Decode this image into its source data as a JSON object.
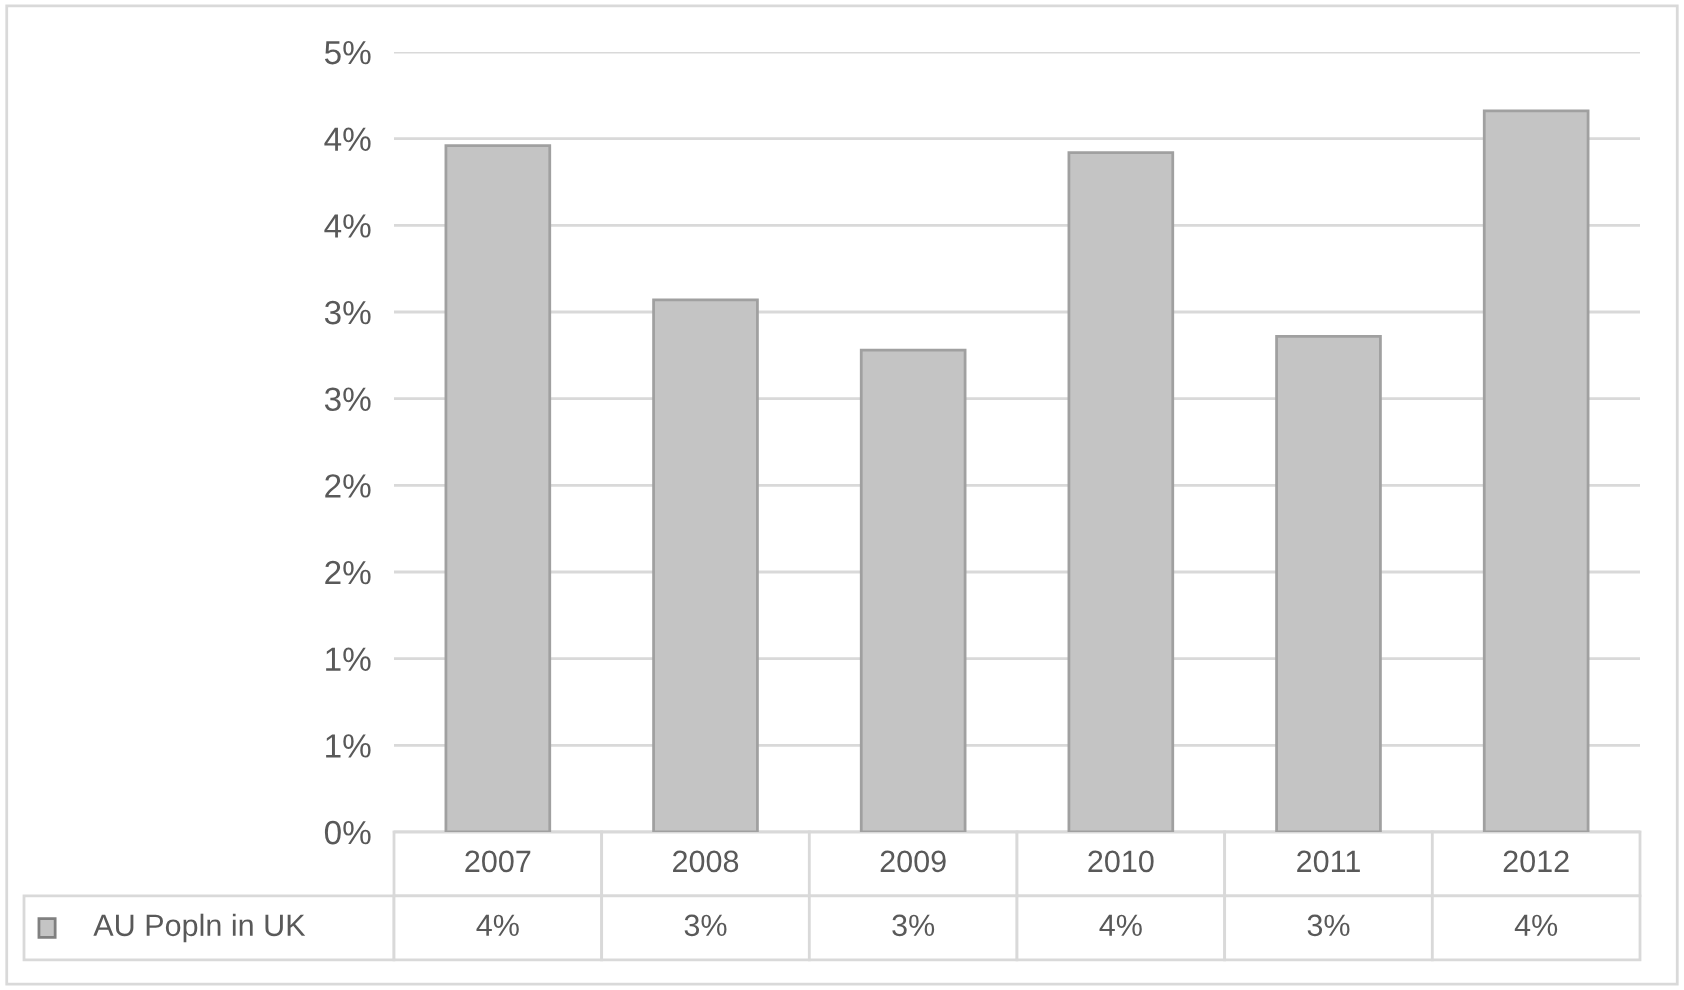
{
  "chart_data": {
    "type": "bar",
    "categories": [
      "2007",
      "2008",
      "2009",
      "2010",
      "2011",
      "2012"
    ],
    "series": [
      {
        "name": "AU Popln in UK",
        "color": "#c4c4c4",
        "values": [
          3.96,
          3.07,
          2.78,
          3.92,
          2.86,
          4.16
        ],
        "value_labels": [
          "4%",
          "3%",
          "3%",
          "4%",
          "3%",
          "4%"
        ]
      }
    ],
    "ylim": [
      0,
      4.5
    ],
    "yticks": [
      {
        "value": 0,
        "label": "0%"
      },
      {
        "value": 0.5,
        "label": "1%"
      },
      {
        "value": 1,
        "label": "1%"
      },
      {
        "value": 1.5,
        "label": "2%"
      },
      {
        "value": 2,
        "label": "2%"
      },
      {
        "value": 2.5,
        "label": "3%"
      },
      {
        "value": 3,
        "label": "3%"
      },
      {
        "value": 3.5,
        "label": "4%"
      },
      {
        "value": 4,
        "label": "4%"
      },
      {
        "value": 4.5,
        "label": "5%"
      }
    ],
    "grid": "y",
    "legend": "bottom"
  }
}
